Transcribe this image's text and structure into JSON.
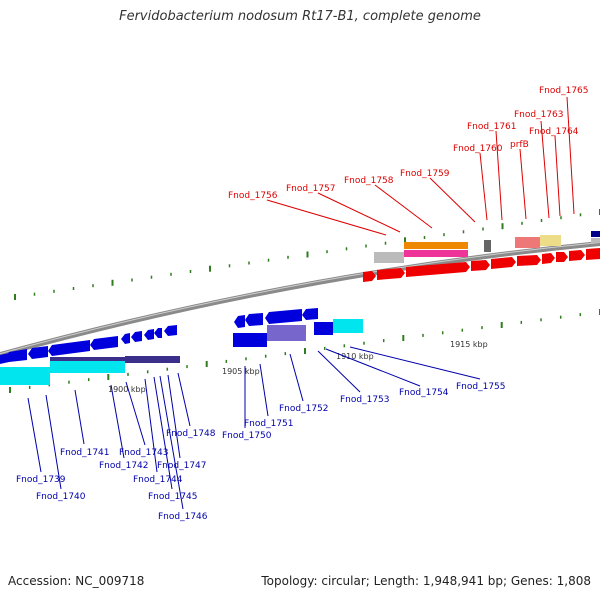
{
  "title": "Fervidobacterium nodosum Rt17-B1, complete genome",
  "footer": {
    "accession": "Accession: NC_009718",
    "summary": "Topology: circular; Length: 1,948,941 bp; Genes: 1,808"
  },
  "colors": {
    "backbone": "#8a8a8a",
    "tick": "#2f7d1e",
    "upper_label": "#dd0000",
    "lower_label": "#0000aa",
    "gene_red": "#ee0000",
    "gene_blue": "#0000dd",
    "gene_navy": "#3a2f8a",
    "gene_cyan": "#00e5ee",
    "gene_purple": "#7766cc",
    "gene_pink": "#ee3399",
    "gene_orange": "#ee8800",
    "gene_gray": "#bbbbbb",
    "gene_salmon": "#ee7777",
    "gene_yellow": "#eedd88"
  },
  "kbp_labels": [
    {
      "text": "1900 kbp",
      "pos": 1900
    },
    {
      "text": "1905 kbp",
      "pos": 1905
    },
    {
      "text": "1910 kbp",
      "pos": 1910
    },
    {
      "text": "1915 kbp",
      "pos": 1915
    }
  ],
  "upper_genes": [
    "Fnod_1756",
    "Fnod_1757",
    "Fnod_1758",
    "Fnod_1759",
    "Fnod_1760",
    "Fnod_1761",
    "prfB",
    "Fnod_1764",
    "Fnod_1763",
    "Fnod_1765"
  ],
  "lower_genes": [
    "Fnod_1739",
    "Fnod_1740",
    "Fnod_1741",
    "Fnod_1742",
    "Fnod_1743",
    "Fnod_1744",
    "Fnod_1745",
    "Fnod_1746",
    "Fnod_1747",
    "Fnod_1748",
    "Fnod_1750",
    "Fnod_1751",
    "Fnod_1752",
    "Fnod_1753",
    "Fnod_1754",
    "Fnod_1755"
  ]
}
